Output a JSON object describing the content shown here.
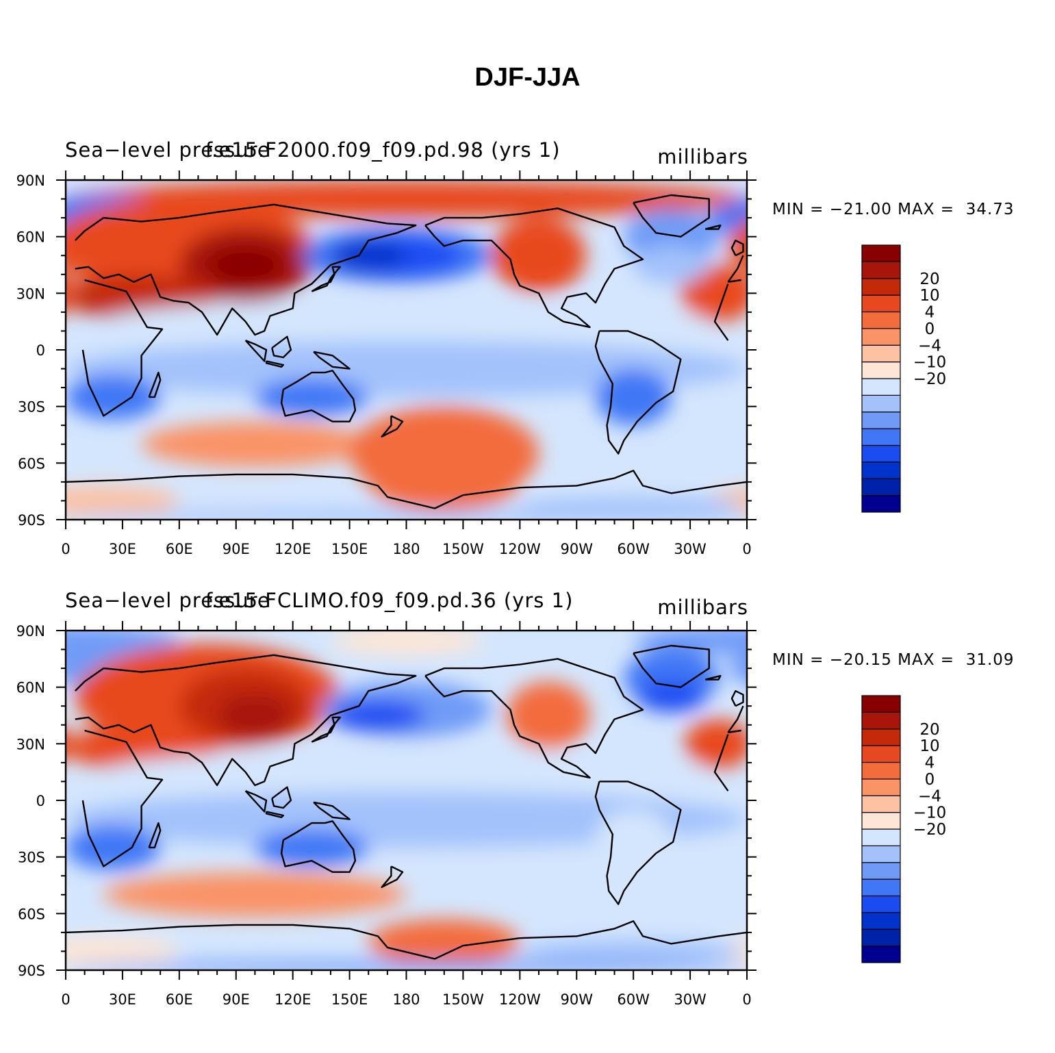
{
  "title": "DJF-JJA",
  "colors": {
    "levels": [
      "#000090",
      "#0022a8",
      "#0033cc",
      "#1a4cf2",
      "#3f77f5",
      "#6f9bf7",
      "#a3c2fb",
      "#d4e6fd",
      "#fde6d6",
      "#fdc2a2",
      "#fa9366",
      "#f36c3c",
      "#e8481f",
      "#c42a0a",
      "#a8150b",
      "#880000"
    ]
  },
  "colorbar": {
    "labels": [
      "20",
      "10",
      "4",
      "0",
      "−4",
      "−10",
      "−20"
    ]
  },
  "axes": {
    "lon_ticks": [
      "0",
      "30E",
      "60E",
      "90E",
      "120E",
      "150E",
      "180",
      "150W",
      "120W",
      "90W",
      "60W",
      "30W",
      "0"
    ],
    "lat_ticks": [
      "90N",
      "60N",
      "30N",
      "0",
      "30S",
      "60S",
      "90S"
    ]
  },
  "panels": [
    {
      "left_label": "Sea−level pressure",
      "case_label": "f.e15.F2000.f09_f09.pd.98 (yrs 1)",
      "units": "millibars",
      "min_max": "MIN = −21.00 MAX =  34.73"
    },
    {
      "left_label": "Sea−level pressure",
      "case_label": "f.e15.FCLIMO.f09_f09.pd.36 (yrs 1)",
      "units": "millibars",
      "min_max": "MIN = −20.15 MAX =  31.09"
    }
  ]
}
